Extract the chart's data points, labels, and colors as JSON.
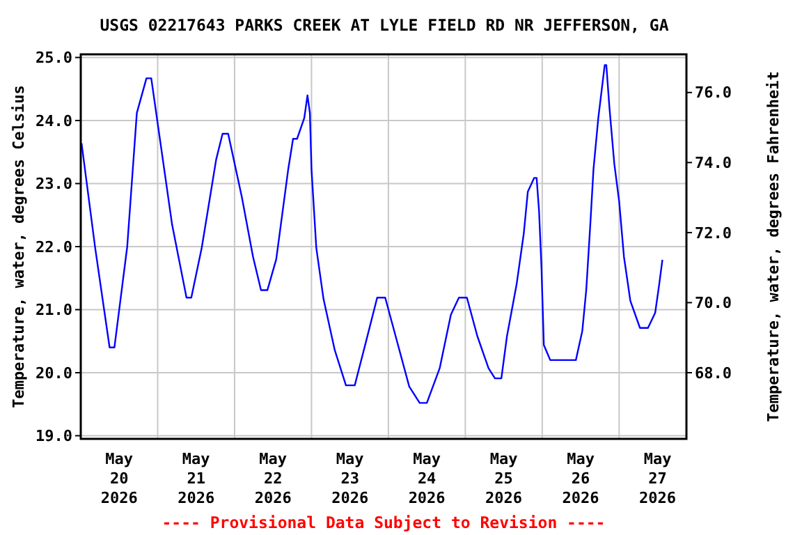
{
  "chart_data": {
    "type": "line",
    "title": "USGS 02217643 PARKS CREEK AT LYLE FIELD RD NR JEFFERSON, GA",
    "ylabel": "Temperature, water, degrees Celsius",
    "y2label": "Temperature, water, degrees Fahrenheit",
    "annotations": [
      "---- Provisional Data Subject to Revision ----"
    ],
    "x": [
      "2026-05-20T00:15",
      "2026-05-20T04:30",
      "2026-05-20T09:00",
      "2026-05-20T10:30",
      "2026-05-20T14:30",
      "2026-05-20T17:30",
      "2026-05-20T20:30",
      "2026-05-20T22:00",
      "2026-05-21T04:30",
      "2026-05-21T09:00",
      "2026-05-21T10:30",
      "2026-05-21T13:45",
      "2026-05-21T18:15",
      "2026-05-21T20:15",
      "2026-05-21T22:00",
      "2026-05-22T02:15",
      "2026-05-22T05:45",
      "2026-05-22T08:15",
      "2026-05-22T10:15",
      "2026-05-22T13:00",
      "2026-05-22T16:45",
      "2026-05-22T18:15",
      "2026-05-22T19:30",
      "2026-05-22T21:45",
      "2026-05-22T22:45",
      "2026-05-22T23:30",
      "2026-05-23T00:00",
      "2026-05-23T01:30",
      "2026-05-23T03:45",
      "2026-05-23T07:15",
      "2026-05-23T10:45",
      "2026-05-23T13:30",
      "2026-05-23T16:45",
      "2026-05-23T20:30",
      "2026-05-23T23:00",
      "2026-05-24T02:15",
      "2026-05-24T06:30",
      "2026-05-24T09:45",
      "2026-05-24T12:00",
      "2026-05-24T16:00",
      "2026-05-24T19:30",
      "2026-05-24T22:00",
      "2026-05-25T00:30",
      "2026-05-25T03:45",
      "2026-05-25T07:15",
      "2026-05-25T09:15",
      "2026-05-25T11:15",
      "2026-05-25T13:00",
      "2026-05-25T16:00",
      "2026-05-25T18:15",
      "2026-05-25T19:30",
      "2026-05-25T21:30",
      "2026-05-25T22:15",
      "2026-05-25T23:00",
      "2026-05-25T23:45",
      "2026-05-26T00:30",
      "2026-05-26T02:30",
      "2026-05-26T10:30",
      "2026-05-26T12:30",
      "2026-05-26T13:45",
      "2026-05-26T15:00",
      "2026-05-26T16:00",
      "2026-05-26T17:30",
      "2026-05-26T19:30",
      "2026-05-26T20:00",
      "2026-05-26T21:00",
      "2026-05-26T22:30",
      "2026-05-27T00:00",
      "2026-05-27T01:30",
      "2026-05-27T03:30",
      "2026-05-27T06:30",
      "2026-05-27T09:00",
      "2026-05-27T11:15",
      "2026-05-27T12:30",
      "2026-05-27T13:30"
    ],
    "series": [
      {
        "color": "#0000ff",
        "values": [
          23.64,
          21.98,
          20.4,
          20.4,
          22.0,
          24.12,
          24.67,
          24.67,
          22.35,
          21.19,
          21.19,
          21.98,
          23.38,
          23.79,
          23.79,
          22.79,
          21.84,
          21.31,
          21.31,
          21.8,
          23.23,
          23.71,
          23.71,
          24.04,
          24.4,
          24.12,
          23.23,
          21.98,
          21.17,
          20.36,
          19.8,
          19.8,
          20.44,
          21.19,
          21.19,
          20.58,
          19.78,
          19.52,
          19.52,
          20.07,
          20.92,
          21.19,
          21.19,
          20.58,
          20.07,
          19.91,
          19.91,
          20.58,
          21.4,
          22.21,
          22.87,
          23.09,
          23.09,
          22.57,
          21.69,
          20.44,
          20.2,
          20.2,
          20.66,
          21.32,
          22.35,
          23.23,
          24.04,
          24.88,
          24.88,
          24.19,
          23.31,
          22.72,
          21.84,
          21.14,
          20.71,
          20.71,
          20.95,
          21.4,
          21.79
        ]
      }
    ],
    "xlim": [
      "2026-05-20T00:00",
      "2026-05-27T21:00"
    ],
    "xticks": [
      {
        "value": "2026-05-20T12:00",
        "label": "May\n20\n2026"
      },
      {
        "value": "2026-05-21T12:00",
        "label": "May\n21\n2026"
      },
      {
        "value": "2026-05-22T12:00",
        "label": "May\n22\n2026"
      },
      {
        "value": "2026-05-23T12:00",
        "label": "May\n23\n2026"
      },
      {
        "value": "2026-05-24T12:00",
        "label": "May\n24\n2026"
      },
      {
        "value": "2026-05-25T12:00",
        "label": "May\n25\n2026"
      },
      {
        "value": "2026-05-26T12:00",
        "label": "May\n26\n2026"
      },
      {
        "value": "2026-05-27T12:00",
        "label": "May\n27\n2026"
      },
      {
        "value": "2026-05-21",
        "label": null
      },
      {
        "value": "2026-05-22",
        "label": null
      },
      {
        "value": "2026-05-23",
        "label": null
      },
      {
        "value": "2026-05-24",
        "label": null
      },
      {
        "value": "2026-05-25",
        "label": null
      },
      {
        "value": "2026-05-26",
        "label": null
      },
      {
        "value": "2026-05-27",
        "label": null
      }
    ],
    "ylim": [
      18.95,
      25.05
    ],
    "yticks": [
      {
        "value": 19,
        "label": "19.0"
      },
      {
        "value": 20,
        "label": "20.0"
      },
      {
        "value": 21,
        "label": "21.0"
      },
      {
        "value": 22,
        "label": "22.0"
      },
      {
        "value": 23,
        "label": "23.0"
      },
      {
        "value": 24,
        "label": "24.0"
      },
      {
        "value": 25,
        "label": "25.0"
      }
    ],
    "y2lim": [
      66.11,
      77.09
    ],
    "y2ticks": [
      {
        "value": 68,
        "label": "68.0"
      },
      {
        "value": 70,
        "label": "70.0"
      },
      {
        "value": 72,
        "label": "72.0"
      },
      {
        "value": 74,
        "label": "74.0"
      },
      {
        "value": 76,
        "label": "76.0"
      }
    ],
    "grid": true
  }
}
